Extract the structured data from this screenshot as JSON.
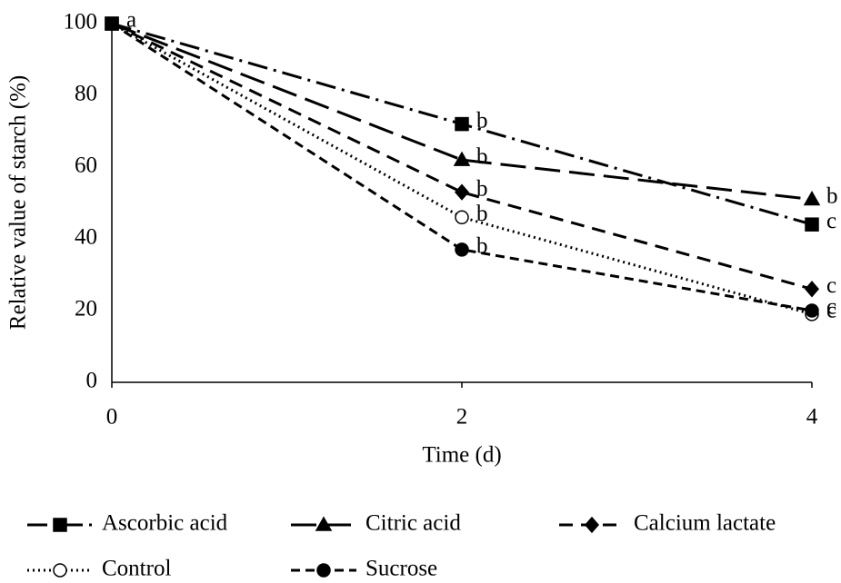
{
  "chart_data": {
    "type": "line",
    "x_label": "Time (d)",
    "y_label": "Relative value of starch (%)",
    "x": [
      0,
      2,
      4
    ],
    "xlim": [
      0,
      4
    ],
    "xticks": [
      0,
      2,
      4
    ],
    "ylim": [
      0,
      100
    ],
    "yticks": [
      0,
      20,
      40,
      60,
      80,
      100
    ],
    "grid": false,
    "legend": "bottom",
    "series": [
      {
        "name": "Ascorbic acid",
        "color": "#000000",
        "dash": "dash-dot",
        "marker": "square",
        "values": [
          100,
          72,
          44
        ]
      },
      {
        "name": "Citric acid",
        "color": "#000000",
        "dash": "long-dash",
        "marker": "triangle",
        "values": [
          100,
          62,
          51
        ]
      },
      {
        "name": "Calcium lactate",
        "color": "#000000",
        "dash": "dash",
        "marker": "diamond",
        "values": [
          100,
          53,
          26
        ]
      },
      {
        "name": "Control",
        "color": "#000000",
        "dash": "dot",
        "marker": "open-circle",
        "values": [
          100,
          46,
          19
        ]
      },
      {
        "name": "Sucrose",
        "color": "#000000",
        "dash": "short-dash",
        "marker": "circle",
        "values": [
          100,
          37,
          20
        ]
      }
    ],
    "annotations": [
      {
        "text": "a",
        "x": 0,
        "y": 100
      },
      {
        "text": "b",
        "x": 2,
        "y": 72
      },
      {
        "text": "b",
        "x": 2,
        "y": 62
      },
      {
        "text": "b",
        "x": 2,
        "y": 53
      },
      {
        "text": "b",
        "x": 2,
        "y": 46
      },
      {
        "text": "b",
        "x": 2,
        "y": 37
      },
      {
        "text": "c",
        "x": 4,
        "y": 44
      },
      {
        "text": "b",
        "x": 4,
        "y": 51
      },
      {
        "text": "c",
        "x": 4,
        "y": 26
      },
      {
        "text": "c",
        "x": 4,
        "y": 19
      },
      {
        "text": "c",
        "x": 4,
        "y": 20
      }
    ]
  }
}
